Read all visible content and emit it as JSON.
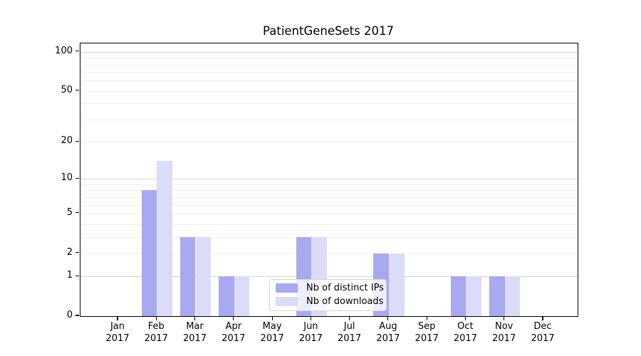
{
  "figure": {
    "title": "PatientGeneSets 2017"
  },
  "legend": {
    "items": [
      {
        "label": "Nb of distinct IPs",
        "color": "#a9a9f1"
      },
      {
        "label": "Nb of downloads",
        "color": "#dcdcf9"
      }
    ]
  },
  "chart_data": {
    "type": "bar",
    "title": "PatientGeneSets 2017",
    "categories": [
      "Jan 2017",
      "Feb 2017",
      "Mar 2017",
      "Apr 2017",
      "May 2017",
      "Jun 2017",
      "Jul 2017",
      "Aug 2017",
      "Sep 2017",
      "Oct 2017",
      "Nov 2017",
      "Dec 2017"
    ],
    "x_tick_labels": [
      {
        "month": "Jan",
        "year": "2017"
      },
      {
        "month": "Feb",
        "year": "2017"
      },
      {
        "month": "Mar",
        "year": "2017"
      },
      {
        "month": "Apr",
        "year": "2017"
      },
      {
        "month": "May",
        "year": "2017"
      },
      {
        "month": "Jun",
        "year": "2017"
      },
      {
        "month": "Jul",
        "year": "2017"
      },
      {
        "month": "Aug",
        "year": "2017"
      },
      {
        "month": "Sep",
        "year": "2017"
      },
      {
        "month": "Oct",
        "year": "2017"
      },
      {
        "month": "Nov",
        "year": "2017"
      },
      {
        "month": "Dec",
        "year": "2017"
      }
    ],
    "series": [
      {
        "name": "Nb of distinct IPs",
        "color": "#a9a9f1",
        "values": [
          0,
          8,
          3,
          1,
          0,
          3,
          0,
          2,
          0,
          1,
          1,
          0
        ]
      },
      {
        "name": "Nb of downloads",
        "color": "#dcdcf9",
        "values": [
          0,
          14,
          3,
          1,
          0,
          3,
          0,
          2,
          0,
          1,
          1,
          0
        ]
      }
    ],
    "y_scale": "log1p",
    "y_ticks": [
      0,
      1,
      2,
      5,
      10,
      20,
      50,
      100
    ],
    "minor_gridlines": [
      2,
      3,
      4,
      5,
      6,
      7,
      8,
      9,
      20,
      30,
      40,
      50,
      60,
      70,
      80,
      90
    ],
    "major_gridlines": [
      1,
      10,
      100
    ],
    "ylim": [
      0,
      116
    ],
    "grid": "horizontal",
    "legend_position": "inside-lower-center"
  },
  "colors": {
    "background": "#ffffff",
    "spine": "#000000",
    "text": "#000000",
    "minor_grid": "#efefef",
    "major_grid": "#d4d4d4"
  }
}
